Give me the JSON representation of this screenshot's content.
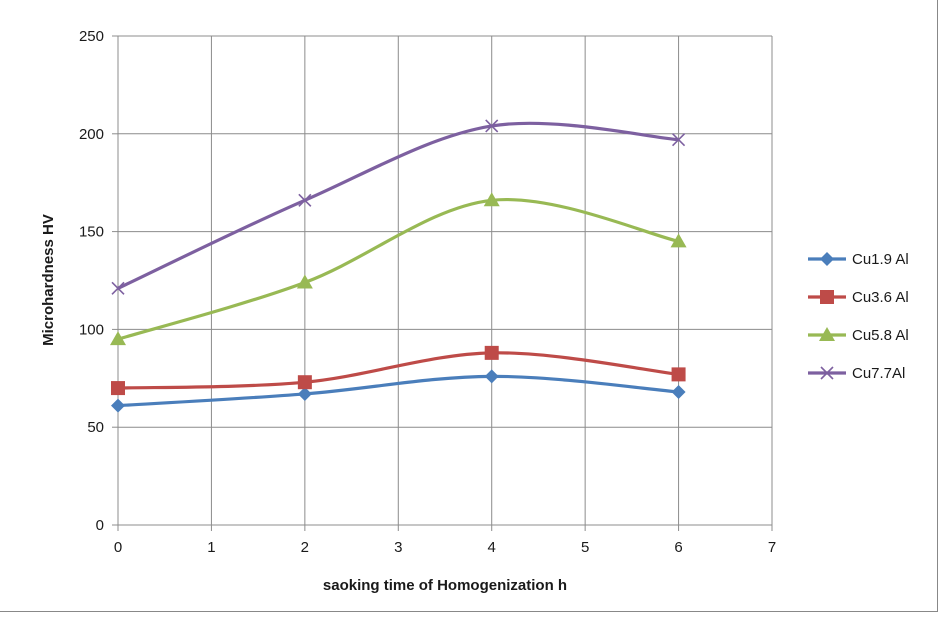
{
  "chart_data": {
    "type": "line",
    "xlabel": "saoking time of Homogenization h",
    "ylabel": "Microhardness HV",
    "xlim": [
      0,
      7
    ],
    "ylim": [
      0,
      250
    ],
    "xticks": [
      0,
      1,
      2,
      3,
      4,
      5,
      6,
      7
    ],
    "yticks": [
      0,
      50,
      100,
      150,
      200,
      250
    ],
    "grid": true,
    "legend_position": "right",
    "smooth": true,
    "x": [
      0,
      2,
      4,
      6
    ],
    "series": [
      {
        "name": "Cu1.9 Al",
        "values": [
          61,
          67,
          76,
          68
        ],
        "color": "#4a7ebb",
        "marker": "diamond"
      },
      {
        "name": "Cu3.6 Al",
        "values": [
          70,
          73,
          88,
          77
        ],
        "color": "#be4b48",
        "marker": "square"
      },
      {
        "name": "Cu5.8 Al",
        "values": [
          95,
          124,
          166,
          145
        ],
        "color": "#98b954",
        "marker": "triangle"
      },
      {
        "name": "Cu7.7Al",
        "values": [
          121,
          166,
          204,
          197
        ],
        "color": "#7d60a0",
        "marker": "x"
      }
    ]
  }
}
